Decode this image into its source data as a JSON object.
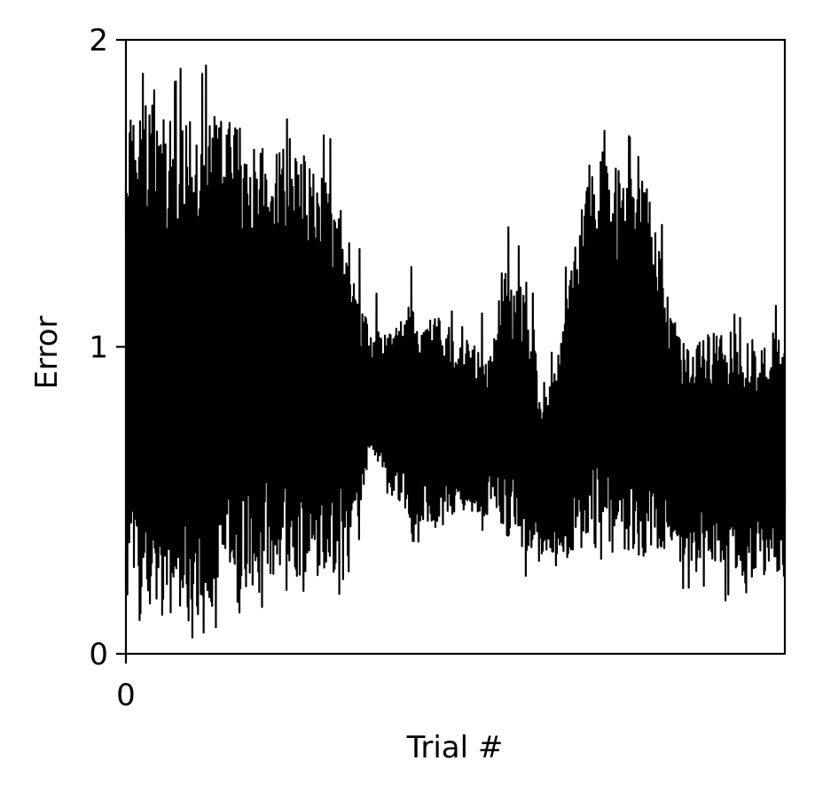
{
  "chart_data": {
    "type": "line",
    "title": "",
    "xlabel": "Trial #",
    "ylabel": "Error",
    "xlim": [
      0,
      100
    ],
    "ylim": [
      0,
      2
    ],
    "x_ticks": [
      {
        "value": 0,
        "label": "0"
      }
    ],
    "y_ticks": [
      {
        "value": 0,
        "label": "0"
      },
      {
        "value": 1,
        "label": "1"
      },
      {
        "value": 2,
        "label": "2"
      }
    ],
    "grid": false,
    "legend": "none",
    "series": [
      {
        "color": "#000000",
        "description_values": "per-trial error oscillating between a lower and upper envelope",
        "envelope": {
          "x": [
            0,
            2,
            8,
            13,
            17,
            22,
            26,
            30,
            33,
            35,
            37,
            39,
            40,
            43,
            47,
            50,
            53,
            55,
            56,
            57,
            60,
            62,
            63,
            65,
            66,
            68,
            70,
            72,
            74,
            75,
            77,
            79,
            81,
            83,
            85,
            87,
            89,
            91,
            93,
            95,
            97,
            99,
            100
          ],
          "upper": [
            1.78,
            1.79,
            1.79,
            1.76,
            1.72,
            1.68,
            1.62,
            1.55,
            1.45,
            1.2,
            1.05,
            1.08,
            1.05,
            1.12,
            1.1,
            1.05,
            1.0,
            0.95,
            1.05,
            1.25,
            1.2,
            1.05,
            0.85,
            0.9,
            1.05,
            1.3,
            1.55,
            1.63,
            1.6,
            1.55,
            1.55,
            1.55,
            1.3,
            1.1,
            1.05,
            1.05,
            1.05,
            1.05,
            1.05,
            1.0,
            1.02,
            1.03,
            1.05
          ],
          "lower": [
            0.12,
            0.13,
            0.12,
            0.15,
            0.2,
            0.24,
            0.25,
            0.24,
            0.26,
            0.4,
            0.65,
            0.6,
            0.55,
            0.45,
            0.4,
            0.45,
            0.45,
            0.45,
            0.5,
            0.4,
            0.35,
            0.3,
            0.3,
            0.28,
            0.3,
            0.3,
            0.32,
            0.35,
            0.35,
            0.33,
            0.3,
            0.32,
            0.32,
            0.3,
            0.28,
            0.3,
            0.26,
            0.25,
            0.25,
            0.25,
            0.25,
            0.27,
            0.3
          ]
        }
      }
    ]
  }
}
